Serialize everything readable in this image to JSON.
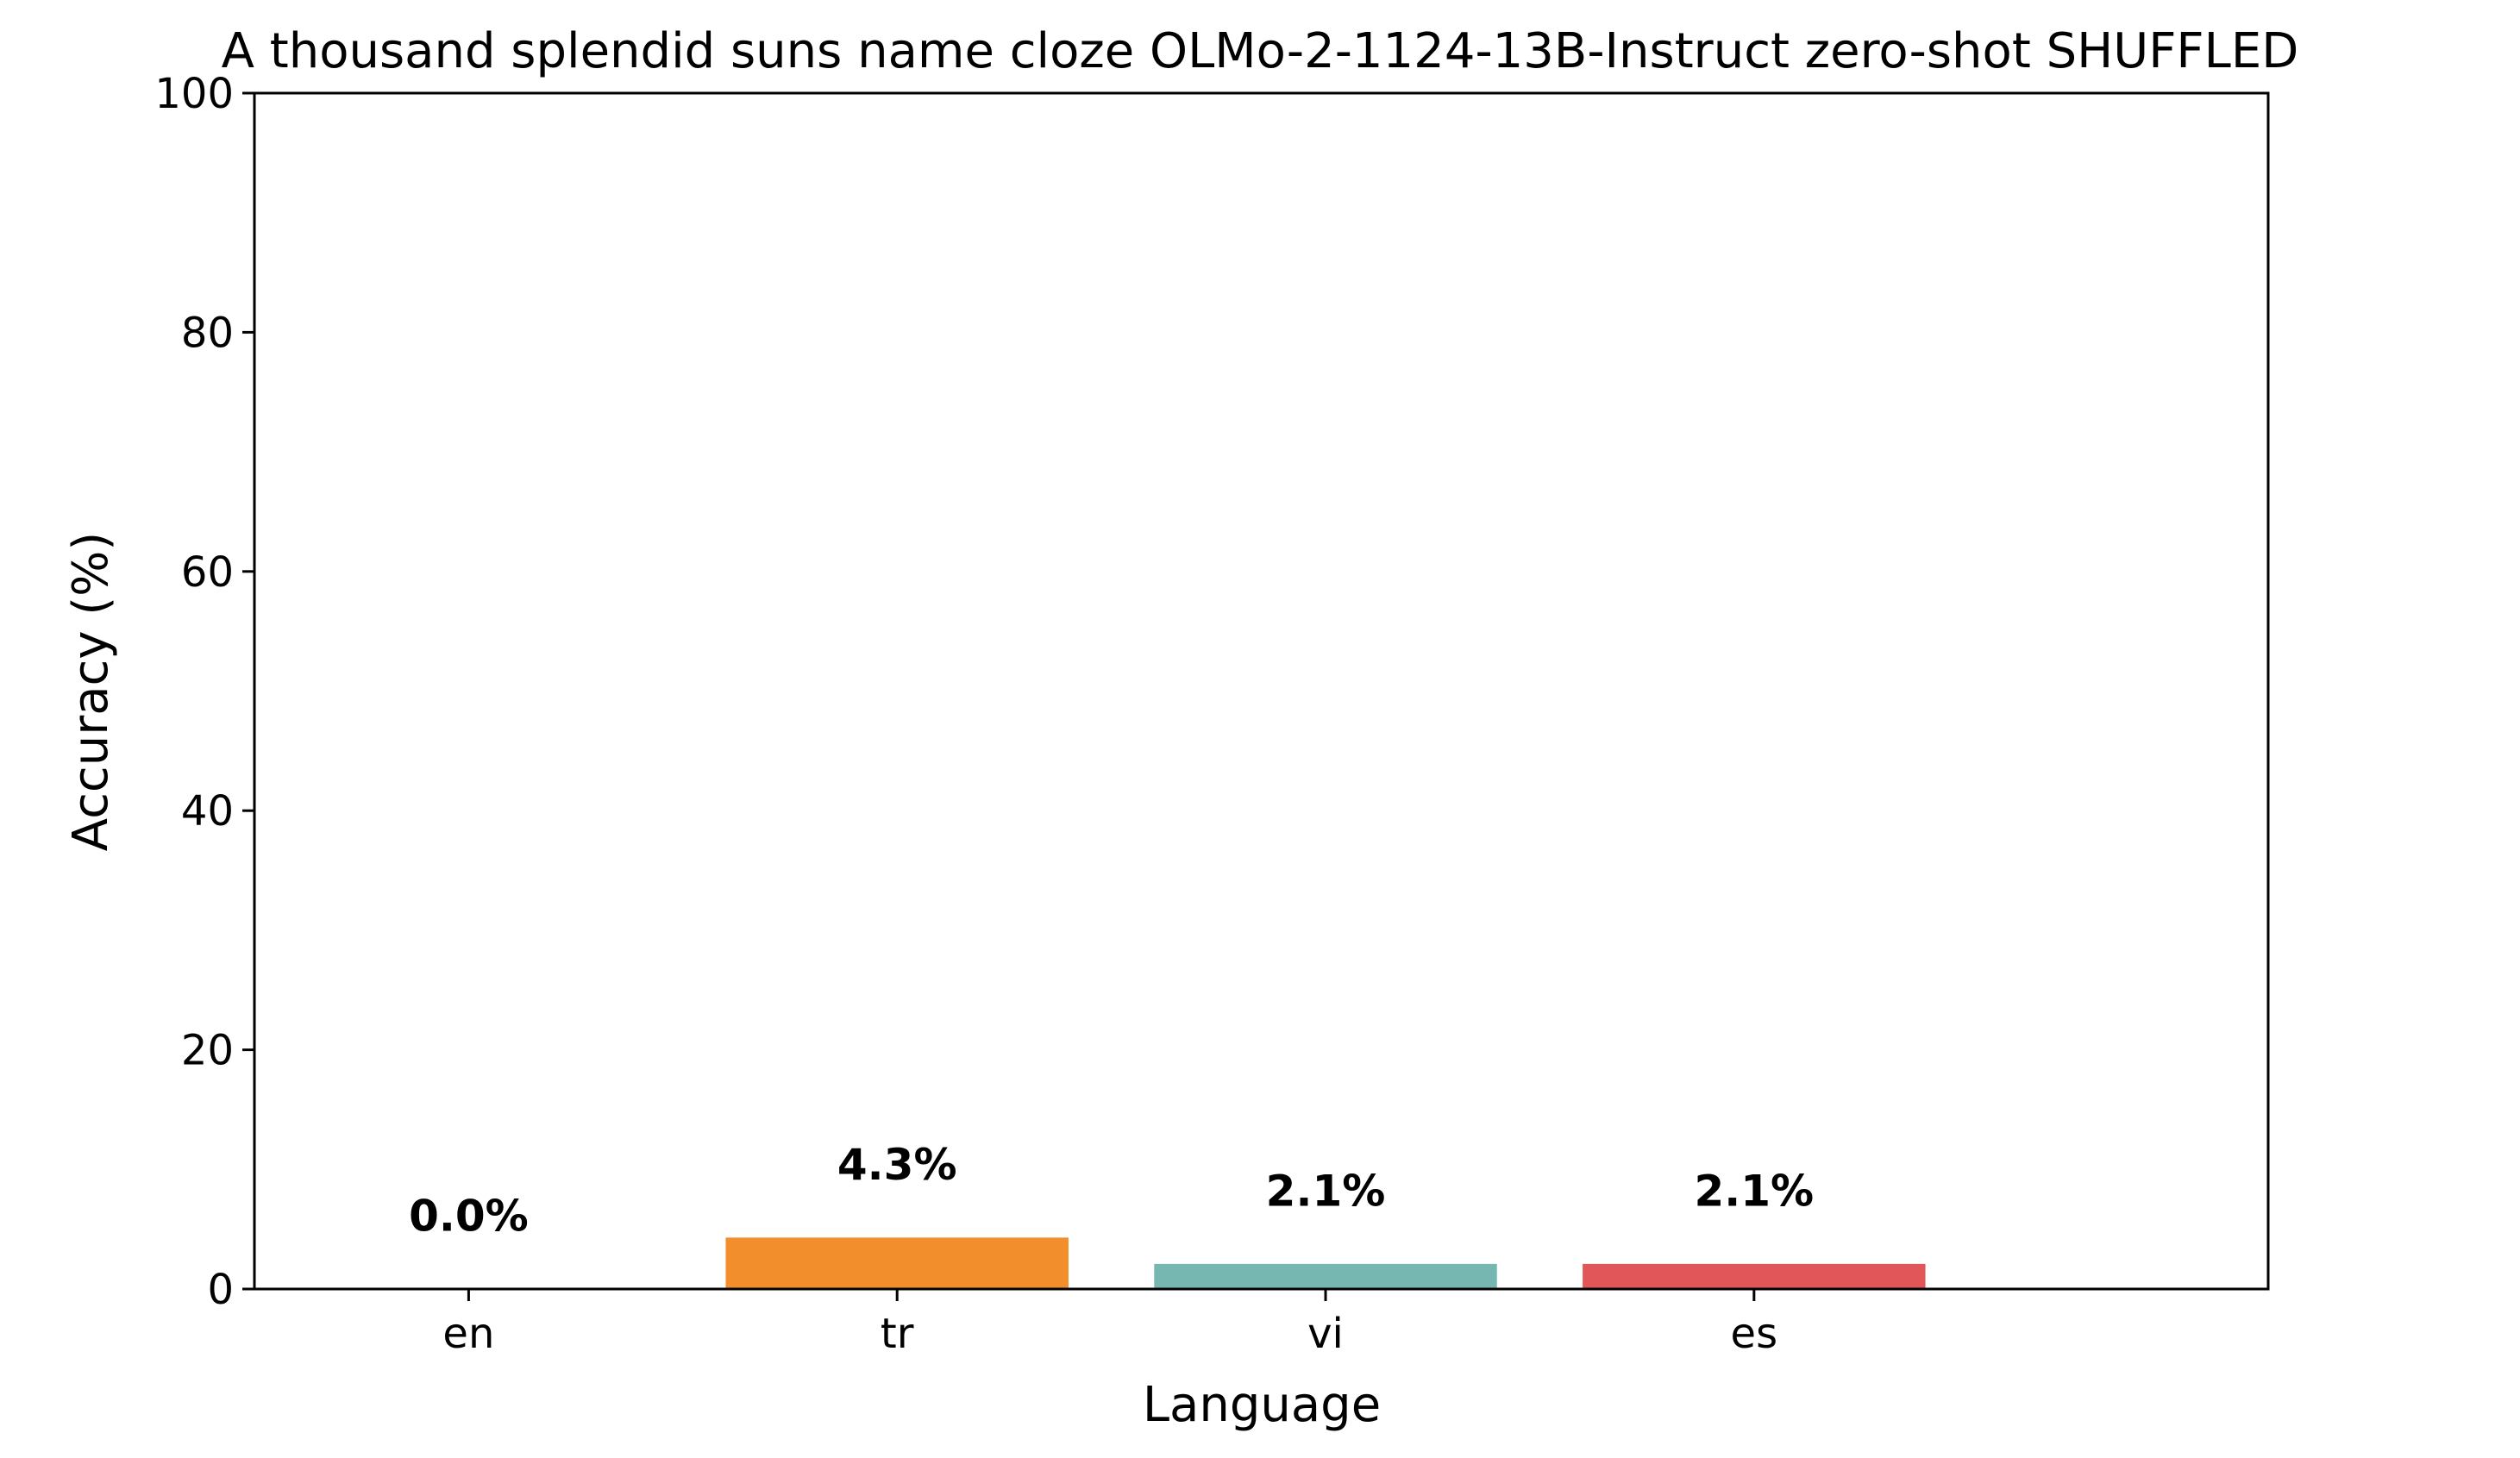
{
  "chart_data": {
    "type": "bar",
    "title": "A thousand splendid suns name cloze OLMo-2-1124-13B-Instruct zero-shot SHUFFLED",
    "xlabel": "Language",
    "ylabel": "Accuracy (%)",
    "ylim": [
      0,
      100
    ],
    "yticks": [
      0,
      20,
      40,
      60,
      80,
      100
    ],
    "categories": [
      "en",
      "tr",
      "vi",
      "es"
    ],
    "values": [
      0.0,
      4.3,
      2.1,
      2.1
    ],
    "data_labels": [
      "0.0%",
      "4.3%",
      "2.1%",
      "2.1%"
    ],
    "colors": [
      "#4c72b0",
      "#f28e2b",
      "#76b7b2",
      "#e15759"
    ],
    "grid": false,
    "legend": "none"
  }
}
